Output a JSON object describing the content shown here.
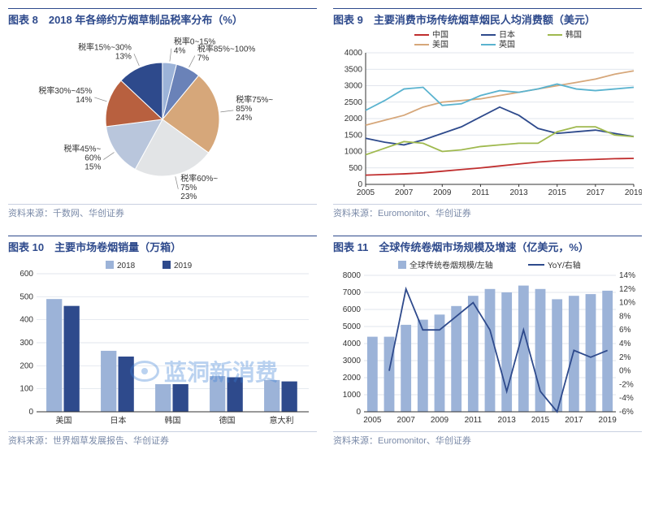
{
  "panels": {
    "p8": {
      "title": "图表 8　2018 年各缔约方烟草制品税率分布（%）",
      "source": "资料来源：千数网、华创证券",
      "type": "pie",
      "slices": [
        {
          "label1": "税率85%~100%",
          "label2": "7%",
          "value": 7,
          "color": "#6a82b8"
        },
        {
          "label1": "税率75%~",
          "label2": "85%",
          "label3": "24%",
          "value": 24,
          "color": "#d6a77a"
        },
        {
          "label1": "税率60%~",
          "label2": "75%",
          "label3": "23%",
          "value": 23,
          "color": "#e2e4e6"
        },
        {
          "label1": "税率45%~",
          "label2": "60%",
          "label3": "15%",
          "value": 15,
          "color": "#b9c6dc"
        },
        {
          "label1": "税率30%~45%",
          "label2": "14%",
          "value": 14,
          "color": "#b8603f"
        },
        {
          "label1": "税率15%~30%",
          "label2": "13%",
          "value": 13,
          "color": "#2e4a8c"
        },
        {
          "label1": "税率0~15%",
          "label2": "4%",
          "value": 4,
          "color": "#9cb3d8"
        }
      ],
      "background": "#ffffff"
    },
    "p9": {
      "title": "图表 9　主要消费市场传统烟草烟民人均消费额（美元）",
      "source": "资料来源：Euromonitor、华创证券",
      "type": "line",
      "series": [
        {
          "name": "中国",
          "color": "#c02e2e",
          "values": [
            280,
            300,
            320,
            350,
            400,
            450,
            500,
            560,
            620,
            680,
            720,
            740,
            760,
            780,
            790
          ]
        },
        {
          "name": "日本",
          "color": "#2e4a8c",
          "values": [
            1400,
            1280,
            1200,
            1350,
            1550,
            1750,
            2050,
            2350,
            2100,
            1700,
            1550,
            1600,
            1650,
            1550,
            1450
          ]
        },
        {
          "name": "韩国",
          "color": "#9fb94e",
          "values": [
            900,
            1100,
            1300,
            1250,
            1000,
            1050,
            1150,
            1200,
            1250,
            1250,
            1600,
            1750,
            1750,
            1500,
            1450
          ]
        },
        {
          "name": "美国",
          "color": "#d6a77a",
          "values": [
            1800,
            1950,
            2100,
            2350,
            2500,
            2550,
            2600,
            2700,
            2800,
            2900,
            3000,
            3100,
            3200,
            3350,
            3450
          ]
        },
        {
          "name": "英国",
          "color": "#5ab3cf",
          "values": [
            2250,
            2550,
            2900,
            2950,
            2400,
            2450,
            2700,
            2850,
            2800,
            2900,
            3050,
            2900,
            2850,
            2900,
            2950
          ]
        }
      ],
      "x_labels": [
        "2005",
        "2007",
        "2009",
        "2011",
        "2013",
        "2015",
        "2017",
        "2019"
      ],
      "y_ticks": [
        0,
        500,
        1000,
        1500,
        2000,
        2500,
        3000,
        3500,
        4000
      ],
      "ylim": [
        0,
        4000
      ],
      "grid_color": "#d8dde6",
      "background": "#ffffff"
    },
    "p10": {
      "title": "图表 10　主要市场卷烟销量（万箱）",
      "source": "资料来源：世界烟草发展报告、华创证券",
      "type": "bar",
      "categories": [
        "美国",
        "日本",
        "韩国",
        "德国",
        "意大利"
      ],
      "series": [
        {
          "name": "2018",
          "color": "#9cb3d8",
          "values": [
            490,
            265,
            120,
            155,
            138
          ]
        },
        {
          "name": "2019",
          "color": "#2e4a8c",
          "values": [
            460,
            240,
            120,
            150,
            132
          ]
        }
      ],
      "y_ticks": [
        0,
        100,
        200,
        300,
        400,
        500,
        600
      ],
      "ylim": [
        0,
        600
      ],
      "grid_color": "#d8dde6",
      "background": "#ffffff",
      "bar_width": 0.32
    },
    "p11": {
      "title": "图表 11　全球传统卷烟市场规模及增速（亿美元，%）",
      "source": "资料来源：Euromonitor、华创证券",
      "type": "combo",
      "x_labels": [
        "2005",
        "2007",
        "2009",
        "2011",
        "2013",
        "2015",
        "2017",
        "2019"
      ],
      "bars": {
        "name": "全球传统卷烟规模/左轴",
        "color": "#9cb3d8",
        "values": [
          4400,
          4400,
          5100,
          5400,
          5700,
          6200,
          6800,
          7200,
          7000,
          7400,
          7200,
          6600,
          6800,
          6900,
          7100
        ]
      },
      "line": {
        "name": "YoY/右轴",
        "color": "#2e4a8c",
        "values": [
          null,
          0,
          12,
          6,
          6,
          8,
          10,
          6,
          -3,
          6,
          -3,
          -6,
          3,
          2,
          3
        ]
      },
      "y_left_ticks": [
        0,
        1000,
        2000,
        3000,
        4000,
        5000,
        6000,
        7000,
        8000
      ],
      "y_left_lim": [
        0,
        8000
      ],
      "y_right_ticks": [
        -6,
        -4,
        -2,
        0,
        2,
        4,
        6,
        8,
        10,
        12,
        14
      ],
      "y_right_lim": [
        -6,
        14
      ],
      "grid_color": "#d8dde6",
      "background": "#ffffff"
    }
  },
  "watermark": "蓝洞新消费"
}
